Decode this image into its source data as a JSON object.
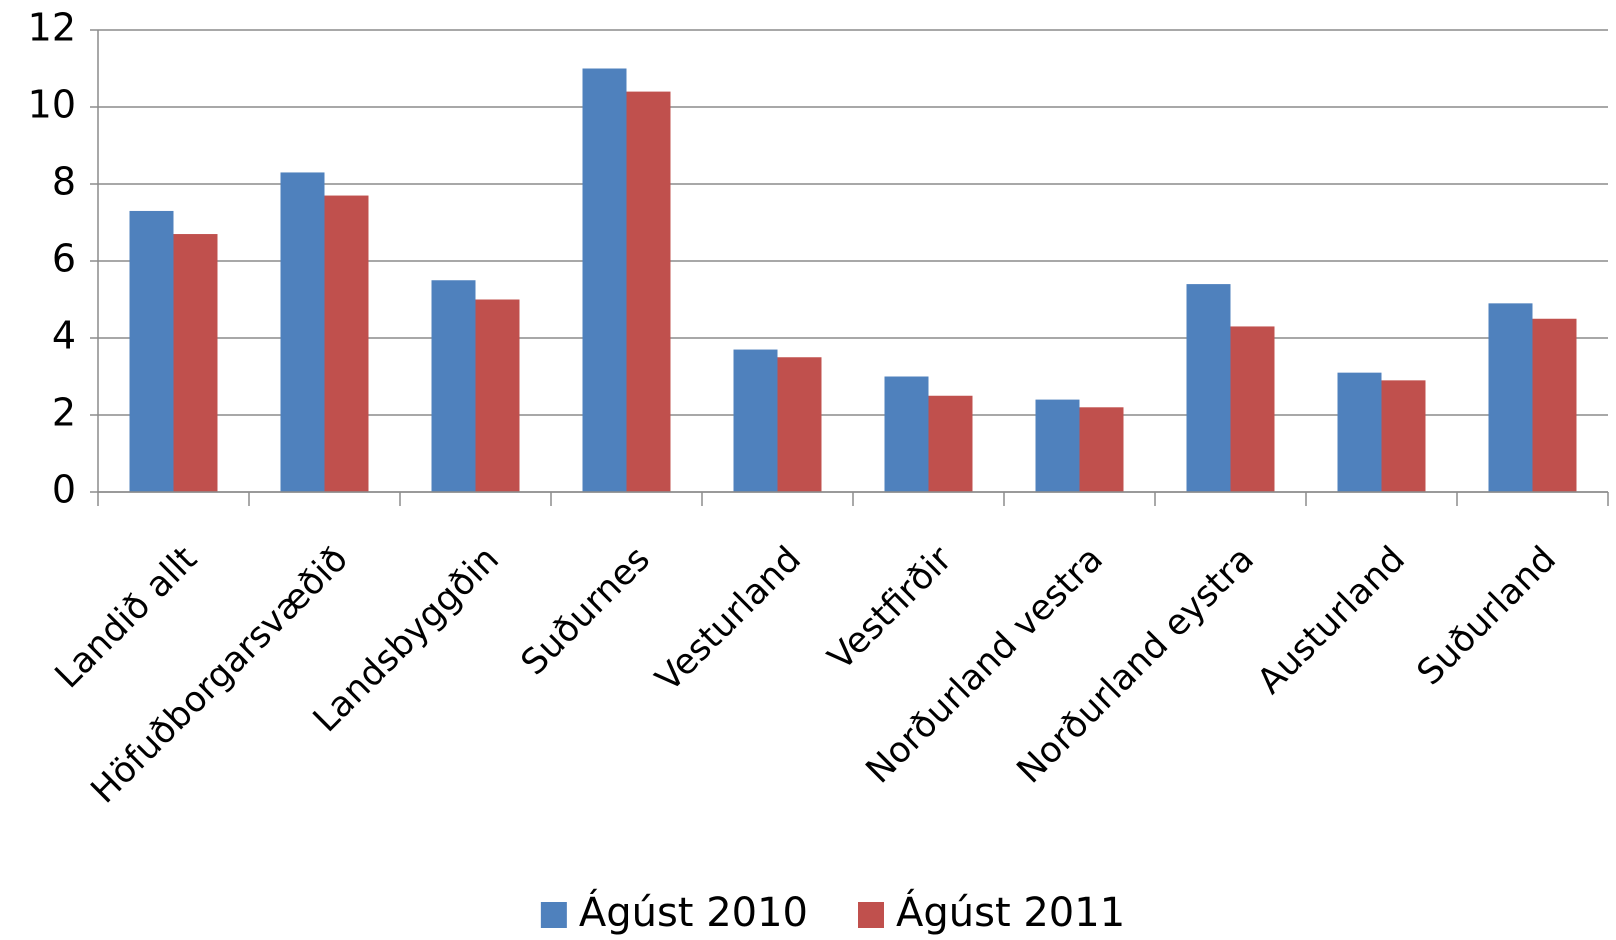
{
  "chart_data": {
    "type": "bar",
    "categories": [
      "Landið allt",
      "Höfuðborgarsvæðið",
      "Landsbyggðin",
      "Suðurnes",
      "Vesturland",
      "Vestfirðir",
      "Norðurland vestra",
      "Norðurland eystra",
      "Austurland",
      "Suðurland"
    ],
    "series": [
      {
        "name": "Ágúst 2010",
        "color": "#4f81bd",
        "values": [
          7.3,
          8.3,
          5.5,
          11.0,
          3.7,
          3.0,
          2.4,
          5.4,
          3.1,
          4.9
        ]
      },
      {
        "name": "Ágúst 2011",
        "color": "#c0504d",
        "values": [
          6.7,
          7.7,
          5.0,
          10.4,
          3.5,
          2.5,
          2.2,
          4.3,
          2.9,
          4.5
        ]
      }
    ],
    "ylim": [
      0,
      12
    ],
    "yticks": [
      0,
      2,
      4,
      6,
      8,
      10,
      12
    ],
    "grid": true,
    "legend": "bottom"
  }
}
